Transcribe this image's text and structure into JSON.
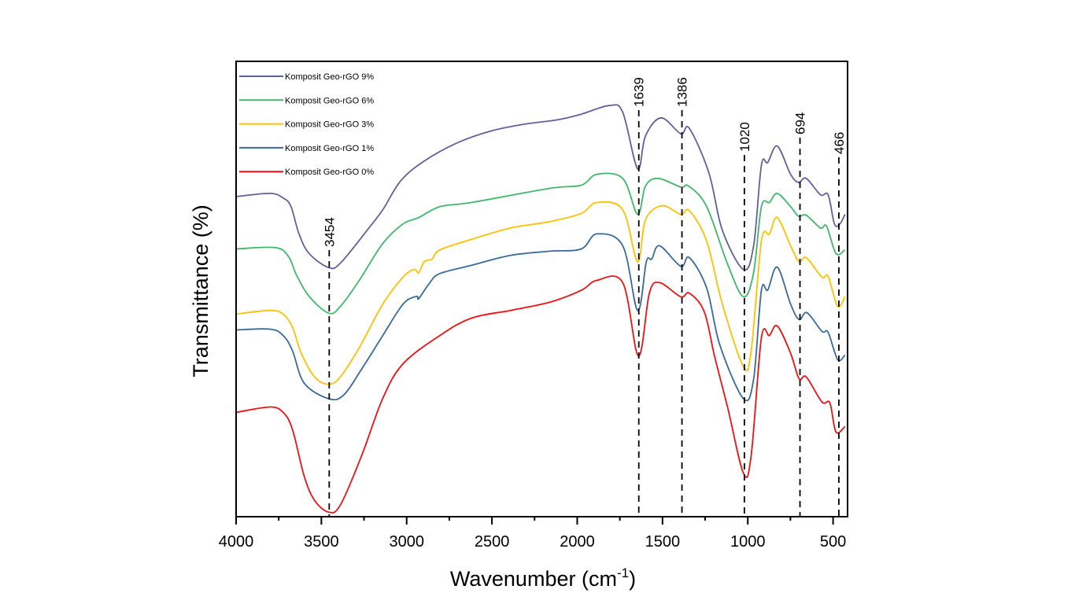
{
  "chart_data": {
    "type": "line",
    "title": "",
    "xlabel": "Wavenumber (cm",
    "xlabel_sup": "-1",
    "xlabel_end": ")",
    "ylabel": "Transmittance (%)",
    "xlim": [
      4000,
      415
    ],
    "ylim": [
      0,
      100
    ],
    "x_reversed": true,
    "y_ticks_shown": false,
    "grid": false,
    "legend_position": "top-left",
    "x_ticks": [
      4000,
      3500,
      3000,
      2500,
      2000,
      1500,
      1000,
      500
    ],
    "x_tick_labels": [
      "4000",
      "3500",
      "3000",
      "2500",
      "2000",
      "1500",
      "1000",
      "500"
    ],
    "x_minor_step": 250,
    "peak_markers": [
      {
        "x": 3454,
        "label": "3454"
      },
      {
        "x": 1639,
        "label": "1639"
      },
      {
        "x": 1386,
        "label": "1386"
      },
      {
        "x": 1020,
        "label": "1020"
      },
      {
        "x": 694,
        "label": "694"
      },
      {
        "x": 466,
        "label": "466"
      }
    ],
    "series": [
      {
        "name": "Komposit Geo-rGO 9%",
        "color": "#60609c",
        "points": [
          [
            4000,
            70.3
          ],
          [
            3802,
            71.0
          ],
          [
            3724,
            70.0
          ],
          [
            3678,
            68.1
          ],
          [
            3632,
            62.2
          ],
          [
            3572,
            57.8
          ],
          [
            3457,
            54.7
          ],
          [
            3388,
            55.7
          ],
          [
            3232,
            62.9
          ],
          [
            3140,
            67.4
          ],
          [
            3034,
            73.8
          ],
          [
            2897,
            78.1
          ],
          [
            2703,
            82.1
          ],
          [
            2506,
            84.7
          ],
          [
            2308,
            86.2
          ],
          [
            2110,
            87.2
          ],
          [
            1977,
            88.4
          ],
          [
            1811,
            90.3
          ],
          [
            1733,
            88.8
          ],
          [
            1646,
            76.4
          ],
          [
            1600,
            83.6
          ],
          [
            1508,
            87.6
          ],
          [
            1393,
            84.1
          ],
          [
            1343,
            85.3
          ],
          [
            1228,
            75.5
          ],
          [
            1149,
            62.9
          ],
          [
            1025,
            54.3
          ],
          [
            966,
            59.5
          ],
          [
            920,
            77.2
          ],
          [
            883,
            77.8
          ],
          [
            827,
            81.4
          ],
          [
            749,
            75.2
          ],
          [
            703,
            73.4
          ],
          [
            657,
            74.3
          ],
          [
            574,
            70.7
          ],
          [
            529,
            70.7
          ],
          [
            492,
            64.3
          ],
          [
            460,
            64.3
          ],
          [
            430,
            66.4
          ]
        ]
      },
      {
        "name": "Komposit Geo-rGO 6%",
        "color": "#3fb76b",
        "points": [
          [
            4000,
            58.8
          ],
          [
            3770,
            59.1
          ],
          [
            3692,
            57.1
          ],
          [
            3646,
            53.1
          ],
          [
            3572,
            48.4
          ],
          [
            3457,
            44.7
          ],
          [
            3388,
            46.2
          ],
          [
            3278,
            51.9
          ],
          [
            3140,
            60.0
          ],
          [
            3021,
            64.3
          ],
          [
            2929,
            65.7
          ],
          [
            2805,
            68.1
          ],
          [
            2621,
            69.0
          ],
          [
            2161,
            72.1
          ],
          [
            1977,
            72.8
          ],
          [
            1885,
            75.2
          ],
          [
            1733,
            74.3
          ],
          [
            1646,
            66.4
          ],
          [
            1600,
            72.6
          ],
          [
            1526,
            74.3
          ],
          [
            1393,
            72.4
          ],
          [
            1347,
            72.6
          ],
          [
            1241,
            68.1
          ],
          [
            1117,
            55.3
          ],
          [
            1025,
            48.3
          ],
          [
            966,
            53.6
          ],
          [
            920,
            68.1
          ],
          [
            873,
            69.0
          ],
          [
            827,
            71.0
          ],
          [
            749,
            68.1
          ],
          [
            703,
            66.0
          ],
          [
            657,
            66.2
          ],
          [
            574,
            63.4
          ],
          [
            538,
            63.8
          ],
          [
            483,
            57.8
          ],
          [
            430,
            58.6
          ]
        ]
      },
      {
        "name": "Komposit Geo-rGO 3%",
        "color": "#ffc000",
        "points": [
          [
            4000,
            44.5
          ],
          [
            3802,
            45.3
          ],
          [
            3724,
            44.5
          ],
          [
            3669,
            41.6
          ],
          [
            3618,
            35.9
          ],
          [
            3540,
            30.7
          ],
          [
            3457,
            29.1
          ],
          [
            3388,
            30.7
          ],
          [
            3278,
            37.1
          ],
          [
            3140,
            46.7
          ],
          [
            3021,
            52.6
          ],
          [
            2956,
            54.3
          ],
          [
            2929,
            53.6
          ],
          [
            2897,
            56.0
          ],
          [
            2851,
            56.6
          ],
          [
            2805,
            58.6
          ],
          [
            2621,
            60.9
          ],
          [
            2391,
            63.4
          ],
          [
            2161,
            64.8
          ],
          [
            1977,
            66.6
          ],
          [
            1885,
            69.0
          ],
          [
            1733,
            67.4
          ],
          [
            1646,
            56.0
          ],
          [
            1600,
            65.2
          ],
          [
            1503,
            68.3
          ],
          [
            1393,
            66.4
          ],
          [
            1343,
            67.2
          ],
          [
            1241,
            60.5
          ],
          [
            1149,
            46.7
          ],
          [
            1025,
            32.9
          ],
          [
            980,
            36.4
          ],
          [
            920,
            60.5
          ],
          [
            873,
            62.1
          ],
          [
            827,
            65.7
          ],
          [
            749,
            59.5
          ],
          [
            699,
            56.0
          ],
          [
            657,
            56.9
          ],
          [
            565,
            52.6
          ],
          [
            529,
            52.8
          ],
          [
            473,
            46.2
          ],
          [
            430,
            48.3
          ]
        ]
      },
      {
        "name": "Komposit Geo-rGO 1%",
        "color": "#386a9c",
        "points": [
          [
            4000,
            41.0
          ],
          [
            3802,
            41.2
          ],
          [
            3724,
            39.8
          ],
          [
            3669,
            36.4
          ],
          [
            3600,
            29.3
          ],
          [
            3457,
            25.9
          ],
          [
            3370,
            26.7
          ],
          [
            3264,
            32.4
          ],
          [
            3140,
            39.8
          ],
          [
            3021,
            46.7
          ],
          [
            2942,
            48.4
          ],
          [
            2929,
            47.9
          ],
          [
            2864,
            51.4
          ],
          [
            2805,
            53.4
          ],
          [
            2621,
            55.2
          ],
          [
            2391,
            57.4
          ],
          [
            2161,
            58.3
          ],
          [
            1977,
            58.8
          ],
          [
            1885,
            62.1
          ],
          [
            1733,
            59.5
          ],
          [
            1646,
            45.3
          ],
          [
            1595,
            56.0
          ],
          [
            1563,
            56.6
          ],
          [
            1517,
            59.5
          ],
          [
            1393,
            55.0
          ],
          [
            1343,
            56.9
          ],
          [
            1241,
            50.2
          ],
          [
            1163,
            37.6
          ],
          [
            1025,
            25.9
          ],
          [
            966,
            30.2
          ],
          [
            920,
            49.7
          ],
          [
            883,
            49.8
          ],
          [
            827,
            54.8
          ],
          [
            749,
            46.7
          ],
          [
            699,
            43.3
          ],
          [
            653,
            44.8
          ],
          [
            565,
            40.7
          ],
          [
            529,
            40.5
          ],
          [
            473,
            34.5
          ],
          [
            430,
            35.5
          ]
        ]
      },
      {
        "name": "Komposit Geo-rGO 0%",
        "color": "#ee1111",
        "points": [
          [
            4000,
            22.9
          ],
          [
            3802,
            24.1
          ],
          [
            3724,
            22.9
          ],
          [
            3669,
            19.1
          ],
          [
            3600,
            8.8
          ],
          [
            3540,
            3.6
          ],
          [
            3457,
            1.0
          ],
          [
            3388,
            2.6
          ],
          [
            3264,
            13.4
          ],
          [
            3140,
            26.0
          ],
          [
            3021,
            33.6
          ],
          [
            2805,
            39.8
          ],
          [
            2621,
            43.6
          ],
          [
            2391,
            45.3
          ],
          [
            2161,
            47.1
          ],
          [
            1977,
            49.7
          ],
          [
            1885,
            51.9
          ],
          [
            1733,
            51.4
          ],
          [
            1641,
            35.3
          ],
          [
            1577,
            49.1
          ],
          [
            1517,
            51.4
          ],
          [
            1393,
            48.3
          ],
          [
            1343,
            49.1
          ],
          [
            1255,
            45.0
          ],
          [
            1195,
            35.3
          ],
          [
            1117,
            23.8
          ],
          [
            1025,
            9.5
          ],
          [
            980,
            13.4
          ],
          [
            920,
            39.3
          ],
          [
            873,
            39.8
          ],
          [
            827,
            41.9
          ],
          [
            749,
            35.9
          ],
          [
            699,
            30.3
          ],
          [
            657,
            30.7
          ],
          [
            565,
            25.2
          ],
          [
            519,
            25.0
          ],
          [
            483,
            18.6
          ],
          [
            430,
            19.8
          ]
        ]
      }
    ]
  }
}
